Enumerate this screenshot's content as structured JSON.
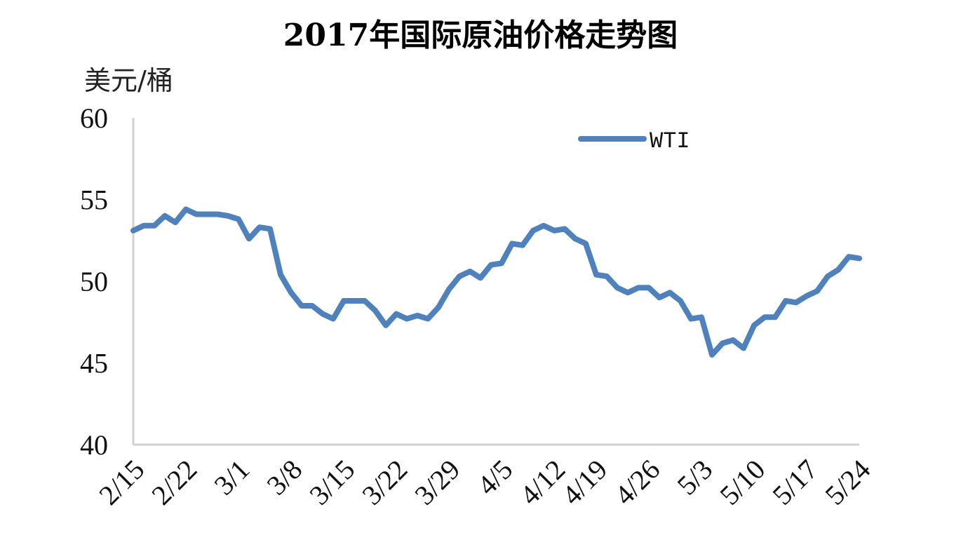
{
  "chart_data": {
    "type": "line",
    "title": "2017年国际原油价格走势图",
    "ylabel": "美元/桶",
    "xlabel": "",
    "ylim": [
      40,
      60
    ],
    "yticks": [
      "40",
      "45",
      "50",
      "55",
      "60"
    ],
    "xtick_labels": [
      "2/15",
      "2/22",
      "3/1",
      "3/8",
      "3/15",
      "3/22",
      "3/29",
      "4/5",
      "4/12",
      "4/19",
      "4/26",
      "5/3",
      "5/10",
      "5/17",
      "5/24"
    ],
    "legend_position": "top-right",
    "grid": false,
    "series": [
      {
        "name": "WTI",
        "color": "#4F81BD",
        "x": [
          "2/15",
          "2/16",
          "2/17",
          "2/20",
          "2/21",
          "2/22",
          "2/23",
          "2/24",
          "2/27",
          "2/28",
          "3/1",
          "3/2",
          "3/3",
          "3/6",
          "3/7",
          "3/8",
          "3/9",
          "3/10",
          "3/13",
          "3/14",
          "3/15",
          "3/16",
          "3/17",
          "3/20",
          "3/21",
          "3/22",
          "3/23",
          "3/24",
          "3/27",
          "3/28",
          "3/29",
          "3/30",
          "3/31",
          "4/3",
          "4/4",
          "4/5",
          "4/6",
          "4/7",
          "4/10",
          "4/11",
          "4/12",
          "4/13",
          "4/17",
          "4/18",
          "4/19",
          "4/20",
          "4/21",
          "4/24",
          "4/25",
          "4/26",
          "4/27",
          "4/28",
          "5/1",
          "5/2",
          "5/3",
          "5/4",
          "5/5",
          "5/8",
          "5/9",
          "5/10",
          "5/11",
          "5/12",
          "5/15",
          "5/16",
          "5/17",
          "5/18",
          "5/19",
          "5/22",
          "5/23",
          "5/24"
        ],
        "values": [
          53.1,
          53.4,
          53.4,
          54.0,
          53.6,
          54.4,
          54.1,
          54.1,
          54.1,
          54.0,
          53.8,
          52.6,
          53.3,
          53.2,
          50.4,
          49.3,
          48.5,
          48.5,
          48.0,
          47.7,
          48.8,
          48.8,
          48.8,
          48.2,
          47.3,
          48.0,
          47.7,
          47.9,
          47.7,
          48.4,
          49.5,
          50.3,
          50.6,
          50.2,
          51.0,
          51.1,
          52.3,
          52.2,
          53.1,
          53.4,
          53.1,
          53.2,
          52.6,
          52.3,
          50.4,
          50.3,
          49.6,
          49.3,
          49.6,
          49.6,
          49.0,
          49.3,
          48.8,
          47.7,
          47.8,
          45.5,
          46.2,
          46.4,
          45.9,
          47.3,
          47.8,
          47.8,
          48.8,
          48.7,
          49.1,
          49.4,
          50.3,
          50.7,
          51.5,
          51.4
        ]
      }
    ]
  }
}
